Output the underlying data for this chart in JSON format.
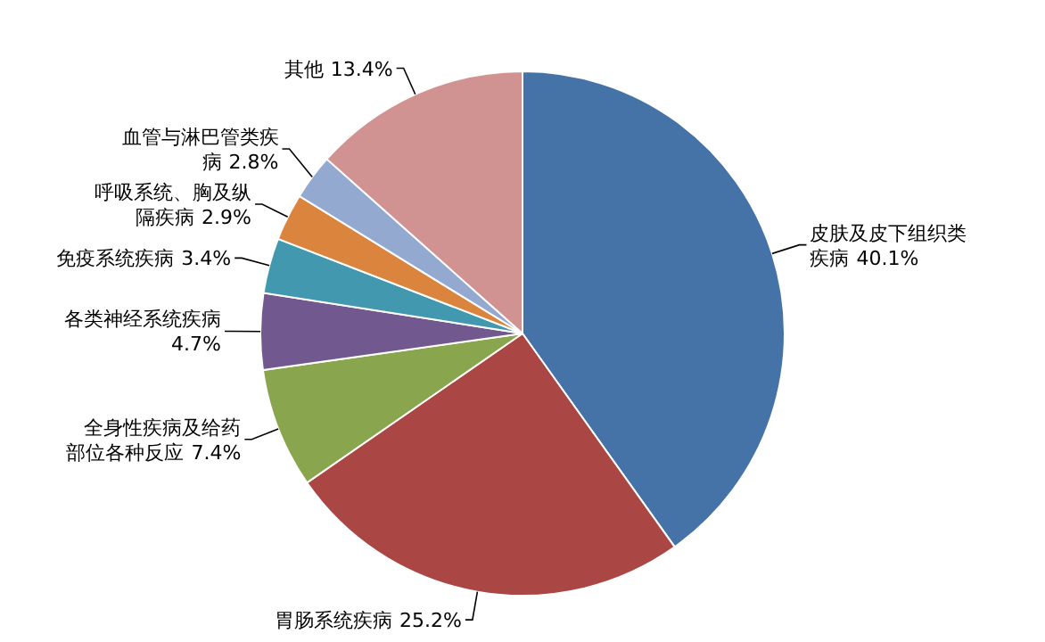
{
  "chart_data": {
    "type": "pie",
    "categories": [
      "皮肤及皮下组织类疾病",
      "胃肠系统疾病",
      "全身性疾病及给药部位各种反应",
      "各类神经系统疾病",
      "免疫系统疾病",
      "呼吸系统、胸及纵隔疾病",
      "血管与淋巴管类疾病",
      "其他"
    ],
    "values": [
      40.1,
      25.2,
      7.4,
      4.7,
      3.4,
      2.9,
      2.8,
      13.4
    ],
    "colors": [
      "#4572a7",
      "#aa4643",
      "#89a54e",
      "#71588f",
      "#4198af",
      "#db843d",
      "#93a9cf",
      "#d19392"
    ],
    "value_labels": [
      "40.1%",
      "25.2%",
      "7.4%",
      "4.7%",
      "3.4%",
      "2.9%",
      "2.8%",
      "13.4%"
    ]
  }
}
